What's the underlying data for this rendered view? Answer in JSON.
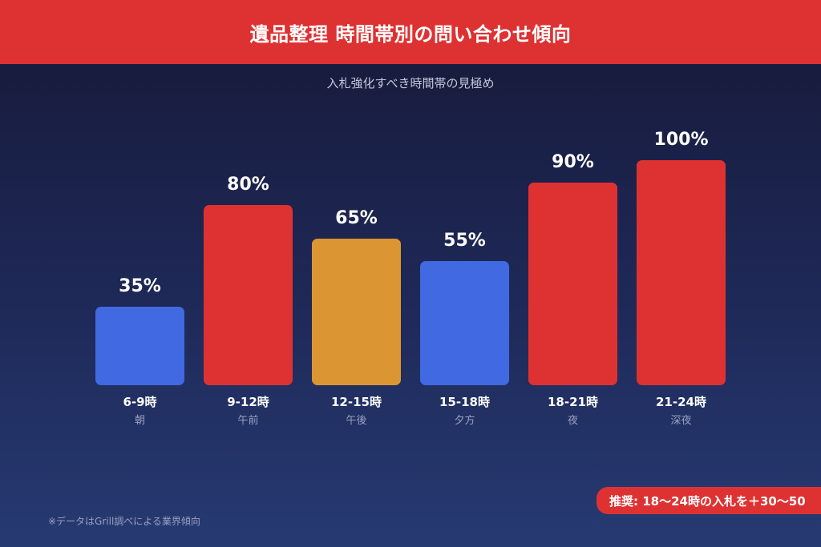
{
  "header": {
    "title": "遺品整理 時間帯別の問い合わせ傾向"
  },
  "subtitle": "入札強化すべき時間帯の見極め",
  "colors": {
    "red": "#de3232",
    "blue": "#4169e1",
    "orange": "#db9633",
    "background": "#1f2a5a"
  },
  "chart_data": {
    "type": "bar",
    "title": "遺品整理 時間帯別の問い合わせ傾向",
    "subtitle": "入札強化すべき時間帯の見極め",
    "categories": [
      "6-9時",
      "9-12時",
      "12-15時",
      "15-18時",
      "18-21時",
      "21-24時"
    ],
    "sub_labels": [
      "朝",
      "午前",
      "午後",
      "夕方",
      "夜",
      "深夜"
    ],
    "values": [
      35,
      80,
      65,
      55,
      90,
      100
    ],
    "value_labels": [
      "35%",
      "80%",
      "65%",
      "55%",
      "90%",
      "100%"
    ],
    "bar_colors": [
      "#4169e1",
      "#de3232",
      "#db9633",
      "#4169e1",
      "#de3232",
      "#de3232"
    ],
    "xlabel": "",
    "ylabel": "",
    "ylim": [
      0,
      100
    ],
    "grid": false,
    "legend": null
  },
  "recommendation": "推奨: 18〜24時の入札を＋30〜50",
  "footnote": "※データはGrill調べによる業界傾向"
}
